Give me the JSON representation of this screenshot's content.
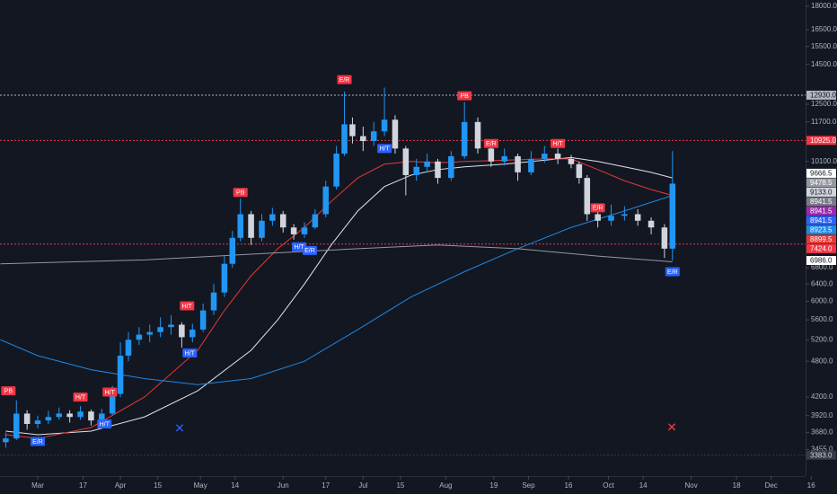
{
  "chart_data": {
    "type": "candlestick",
    "log_scale": true,
    "up_color": "#2196f3",
    "down_color": "#d1d4dc",
    "x": [
      -12,
      -8,
      -4,
      0,
      4,
      8,
      12,
      16,
      20,
      24,
      28,
      31,
      34,
      38,
      42,
      46,
      50,
      54,
      58,
      62,
      66,
      70,
      73,
      76,
      80,
      84,
      88,
      92,
      96,
      100,
      104,
      108,
      112,
      115,
      118,
      122,
      126,
      130,
      134,
      138,
      142,
      146,
      150,
      155,
      160,
      165,
      170,
      175,
      180,
      185,
      190,
      195,
      200,
      203,
      206,
      210,
      215,
      220,
      225,
      230,
      235,
      238
    ],
    "open": [
      3550,
      3600,
      3950,
      3800,
      3850,
      3900,
      3950,
      3900,
      3980,
      3850,
      3950,
      4250,
      4900,
      5200,
      5300,
      5350,
      5450,
      5500,
      5250,
      5400,
      5800,
      6200,
      6900,
      7600,
      8300,
      7600,
      8100,
      8300,
      7900,
      7700,
      7900,
      8300,
      9200,
      10400,
      11600,
      11100,
      10900,
      11300,
      11800,
      10600,
      9600,
      9900,
      10100,
      9500,
      10300,
      11700,
      10600,
      10100,
      10300,
      9700,
      10200,
      10400,
      10200,
      10000,
      9500,
      8300,
      8100,
      8250,
      8300,
      8100,
      7900,
      7300
    ],
    "high": [
      3680,
      4150,
      4000,
      3920,
      3990,
      4040,
      4000,
      4060,
      4010,
      4020,
      4380,
      5150,
      5350,
      5450,
      5500,
      5650,
      5700,
      5550,
      5520,
      5950,
      6400,
      7100,
      7800,
      8800,
      8400,
      8300,
      8500,
      8400,
      8000,
      8050,
      8450,
      9400,
      10700,
      13100,
      11900,
      11500,
      11700,
      13300,
      12000,
      10700,
      10200,
      10400,
      10200,
      10500,
      12600,
      11900,
      10800,
      10600,
      10400,
      10500,
      10700,
      10600,
      10350,
      10100,
      9600,
      8500,
      8600,
      8550,
      8450,
      8200,
      8000,
      10500
    ],
    "low": [
      3480,
      3580,
      3720,
      3740,
      3800,
      3860,
      3820,
      3860,
      3780,
      3800,
      3920,
      4200,
      4800,
      5100,
      5150,
      5250,
      5300,
      5050,
      5150,
      5350,
      5700,
      6100,
      6800,
      7500,
      7400,
      7500,
      7950,
      7750,
      7550,
      7600,
      7850,
      8200,
      9100,
      10300,
      10800,
      10500,
      10700,
      11100,
      10400,
      8900,
      9400,
      9700,
      9300,
      9400,
      10200,
      10400,
      9900,
      9950,
      9400,
      9600,
      10050,
      10000,
      9850,
      9300,
      8100,
      7900,
      7950,
      8100,
      7950,
      7700,
      7050,
      6986
    ],
    "close": [
      3600,
      3950,
      3800,
      3850,
      3900,
      3950,
      3900,
      3980,
      3850,
      3950,
      4250,
      4900,
      5200,
      5300,
      5350,
      5450,
      5500,
      5250,
      5400,
      5800,
      6200,
      6900,
      7600,
      8300,
      7600,
      8100,
      8300,
      7900,
      7700,
      7900,
      8300,
      9200,
      10400,
      11600,
      11100,
      10900,
      11300,
      11800,
      10600,
      9600,
      9900,
      10100,
      9500,
      10300,
      11700,
      10600,
      10100,
      10300,
      9700,
      10200,
      10400,
      10200,
      10000,
      9500,
      8300,
      8100,
      8250,
      8300,
      8100,
      7900,
      7300,
      9300
    ],
    "overlays": [
      {
        "color": "#e0e3eb",
        "x": [
          -12,
          0,
          20,
          40,
          60,
          80,
          90,
          100,
          110,
          120,
          130,
          140,
          150,
          160,
          175,
          190,
          200,
          210,
          220,
          230,
          238
        ],
        "values": [
          3700,
          3650,
          3700,
          3900,
          4300,
          5000,
          5600,
          6400,
          7400,
          8400,
          9200,
          9600,
          9800,
          9900,
          10000,
          10150,
          10250,
          10100,
          9900,
          9700,
          9500
        ]
      },
      {
        "color": "#e53935",
        "x": [
          -12,
          0,
          20,
          40,
          60,
          70,
          80,
          90,
          100,
          110,
          120,
          130,
          140,
          150,
          160,
          175,
          190,
          200,
          210,
          220,
          230,
          238
        ],
        "values": [
          3650,
          3600,
          3750,
          4200,
          5000,
          5800,
          6600,
          7300,
          7900,
          8700,
          9500,
          10000,
          10100,
          10050,
          10100,
          10150,
          10200,
          10200,
          9800,
          9400,
          9100,
          8900
        ]
      },
      {
        "color": "#1e88e5",
        "x": [
          -14,
          0,
          20,
          40,
          60,
          80,
          100,
          120,
          140,
          160,
          180,
          200,
          220,
          238
        ],
        "values": [
          5200,
          4900,
          4650,
          4500,
          4400,
          4500,
          4800,
          5400,
          6100,
          6700,
          7300,
          7900,
          8400,
          8900
        ]
      },
      {
        "color": "#9598a1",
        "x": [
          -14,
          40,
          80,
          120,
          150,
          180,
          210,
          238
        ],
        "values": [
          6900,
          7000,
          7150,
          7300,
          7400,
          7300,
          7100,
          6950
        ]
      }
    ],
    "annotations": [
      {
        "text": "PB",
        "x": -11,
        "y": 4300,
        "color": "#f23645"
      },
      {
        "text": "E/R",
        "x": 0,
        "y": 3560,
        "color": "#2962ff"
      },
      {
        "text": "H/T",
        "x": 16,
        "y": 4200,
        "color": "#f23645"
      },
      {
        "text": "H/T",
        "x": 27,
        "y": 4280,
        "color": "#f23645"
      },
      {
        "text": "H/T",
        "x": 25,
        "y": 3800,
        "color": "#2962ff"
      },
      {
        "text": "H/T",
        "x": 56,
        "y": 5900,
        "color": "#f23645"
      },
      {
        "text": "H/T",
        "x": 57,
        "y": 4950,
        "color": "#2962ff"
      },
      {
        "text": "PB",
        "x": 76,
        "y": 9000,
        "color": "#f23645"
      },
      {
        "text": "H/T",
        "x": 98,
        "y": 7350,
        "color": "#2962ff"
      },
      {
        "text": "E/R",
        "x": 102,
        "y": 7250,
        "color": "#2962ff"
      },
      {
        "text": "E/R",
        "x": 115,
        "y": 13700,
        "color": "#f23645"
      },
      {
        "text": "H/T",
        "x": 130,
        "y": 10600,
        "color": "#2962ff"
      },
      {
        "text": "PB",
        "x": 160,
        "y": 12900,
        "color": "#f23645"
      },
      {
        "text": "E/R",
        "x": 170,
        "y": 10800,
        "color": "#f23645"
      },
      {
        "text": "H/T",
        "x": 195,
        "y": 10800,
        "color": "#f23645"
      },
      {
        "text": "E/R",
        "x": 210,
        "y": 8500,
        "color": "#f23645"
      },
      {
        "text": "E/R",
        "x": 238,
        "y": 6700,
        "color": "#2962ff"
      }
    ],
    "xlim": [
      -14.15,
      287.9
    ],
    "xticks": [
      {
        "value": 0,
        "label": "Mar"
      },
      17,
      {
        "value": 31,
        "label": "Apr"
      },
      {
        "value": 45,
        "label": "15"
      },
      {
        "value": 61,
        "label": "May"
      },
      {
        "value": 74,
        "label": "14"
      },
      {
        "value": 92,
        "label": "Jun"
      },
      {
        "value": 108,
        "label": "17"
      },
      {
        "value": 122,
        "label": "Jul"
      },
      {
        "value": 136,
        "label": "15"
      },
      {
        "value": 153,
        "label": "Aug"
      },
      {
        "value": 171,
        "label": "19"
      },
      {
        "value": 184,
        "label": "Sep"
      },
      {
        "value": 199,
        "label": "16"
      },
      {
        "value": 214,
        "label": "Oct"
      },
      {
        "value": 227,
        "label": "14"
      },
      {
        "value": 245,
        "label": "Nov"
      },
      {
        "value": 262,
        "label": "18"
      },
      {
        "value": 275,
        "label": "Dec"
      },
      {
        "value": 290,
        "label": "16"
      }
    ],
    "ylim": [
      3130,
      18430
    ],
    "yticks": [
      {
        "value": 18000,
        "label": "18000.0"
      },
      {
        "value": 16500,
        "label": "16500.0"
      },
      {
        "value": 15500,
        "label": "15500.0"
      },
      {
        "value": 14500,
        "label": "14500.0"
      },
      {
        "value": 12500,
        "label": "12500.0"
      },
      {
        "value": 11700,
        "label": "11700.0"
      },
      {
        "value": 10100,
        "label": "10100.0"
      },
      {
        "value": 6800,
        "label": "6800.0"
      },
      {
        "value": 6400,
        "label": "6400.0"
      },
      {
        "value": 6000,
        "label": "6000.0"
      },
      {
        "value": 5600,
        "label": "5600.0"
      },
      {
        "value": 5200,
        "label": "5200.0"
      },
      {
        "value": 4800,
        "label": "4800.0"
      },
      {
        "value": 4200,
        "label": "4200.0"
      },
      {
        "value": 3920,
        "label": "3920.0"
      },
      {
        "value": 3680,
        "label": "3680.0"
      },
      {
        "value": 3455,
        "label": "3455.0"
      }
    ],
    "price_labels": [
      {
        "value": 12930,
        "label": "12930.0",
        "color": "#b2b5be",
        "text_color": "#131722",
        "line": true
      },
      {
        "value": 10925,
        "label": "10925.0",
        "color": "#f23645",
        "text_color": "#ffffff",
        "line": true
      },
      {
        "value": 9666.5,
        "label": "9666.5",
        "color": "#ffffff",
        "text_color": "#131722"
      },
      {
        "value": 9478.5,
        "label": "9478.5",
        "color": "#9598a1",
        "text_color": "#ffffff"
      },
      {
        "value": 9133,
        "label": "9133.0",
        "color": "#d1d4dc",
        "text_color": "#131722"
      },
      {
        "value": 8941.5,
        "label": "8941.5",
        "color": "#787b86",
        "text_color": "#ffffff"
      },
      {
        "value": 8941.5,
        "label": "8941.5",
        "color": "#9c27b0",
        "text_color": "#ffffff"
      },
      {
        "value": 8941.5,
        "label": "8941.5",
        "color": "#2962ff",
        "text_color": "#ffffff"
      },
      {
        "value": 8923.5,
        "label": "8923.5",
        "color": "#1e88e5",
        "text_color": "#ffffff"
      },
      {
        "value": 8899.5,
        "label": "8899.5",
        "color": "#e53935",
        "text_color": "#ffffff"
      },
      {
        "value": 7424,
        "label": "7424.0",
        "color": "#f23645",
        "text_color": "#ffffff",
        "line": true
      },
      {
        "value": 6986,
        "label": "6986.0",
        "color": "#ffffff",
        "text_color": "#131722"
      },
      {
        "value": 3383,
        "label": "3383.0",
        "color": "#363a45",
        "text_color": "#d1d4dc",
        "line": true
      }
    ]
  }
}
